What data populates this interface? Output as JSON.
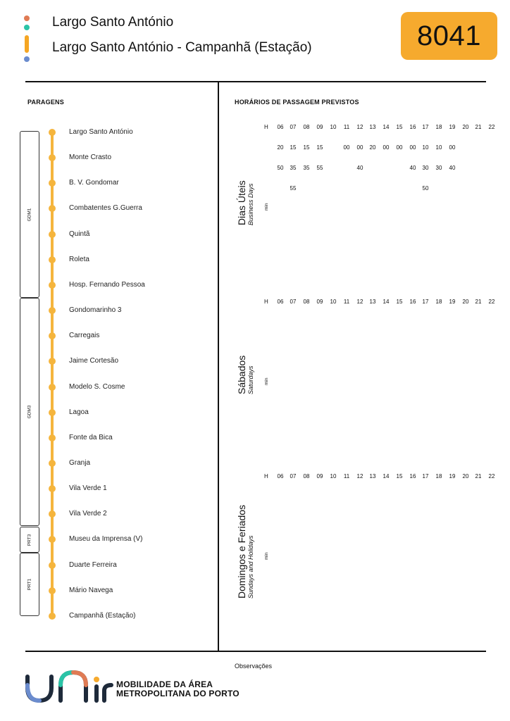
{
  "header": {
    "line_name": "Largo Santo António",
    "route": "Largo Santo António - Campanhã (Estação)",
    "line_number": "8041"
  },
  "stops_section": {
    "title": "PARAGENS",
    "stops": [
      "Largo Santo António",
      "Monte Crasto",
      "B. V. Gondomar",
      "Combatentes G.Guerra",
      "Quintã",
      "Roleta",
      "Hosp. Fernando Pessoa",
      "Gondomarinho 3",
      "Carregais",
      "Jaime Cortesão",
      "Modelo S. Cosme",
      "Lagoa",
      "Fonte da Bica",
      "Granja",
      "Vila Verde 1",
      "Vila Verde 2",
      "Museu da Imprensa (V)",
      "Duarte Ferreira",
      "Mário Navega",
      "Campanhã (Estação)"
    ],
    "zones": [
      "GDM1",
      "GDM3",
      "PRT3",
      "PRT1"
    ]
  },
  "schedule_section": {
    "title": "HORÁRIOS DE PASSAGEM PREVISTOS",
    "hour_label": "H",
    "minute_label": "min",
    "hours": [
      "06",
      "07",
      "08",
      "09",
      "10",
      "11",
      "12",
      "13",
      "14",
      "15",
      "16",
      "17",
      "18",
      "19",
      "20",
      "21",
      "22"
    ],
    "day_types": [
      {
        "name": "Dias Úteis",
        "subtitle": "Business Days",
        "minutes": [
          [
            "20",
            "50"
          ],
          [
            "15",
            "35",
            "55"
          ],
          [
            "15",
            "35"
          ],
          [
            "15",
            "55"
          ],
          [],
          [
            "00"
          ],
          [
            "00",
            "40"
          ],
          [
            "20"
          ],
          [
            "00"
          ],
          [
            "00"
          ],
          [
            "00",
            "40"
          ],
          [
            "10",
            "30",
            "50"
          ],
          [
            "10",
            "30"
          ],
          [
            "00",
            "40"
          ],
          [],
          [],
          []
        ]
      },
      {
        "name": "Sábados",
        "subtitle": "Saturdays",
        "minutes": []
      },
      {
        "name": "Domingos e Feriados",
        "subtitle": "Sundays and Holidays",
        "minutes": []
      }
    ]
  },
  "footer": {
    "observations_label": "Observações",
    "brand_line1": "MOBILIDADE DA ÁREA",
    "brand_line2": "METROPOLITANA DO PORTO"
  },
  "colors": {
    "accent": "#f6aa2e",
    "line": "#f5b53d",
    "dot_top": "#e07b54",
    "dot_mid": "#2bc4a7",
    "dot_bottom": "#6b8cce"
  }
}
